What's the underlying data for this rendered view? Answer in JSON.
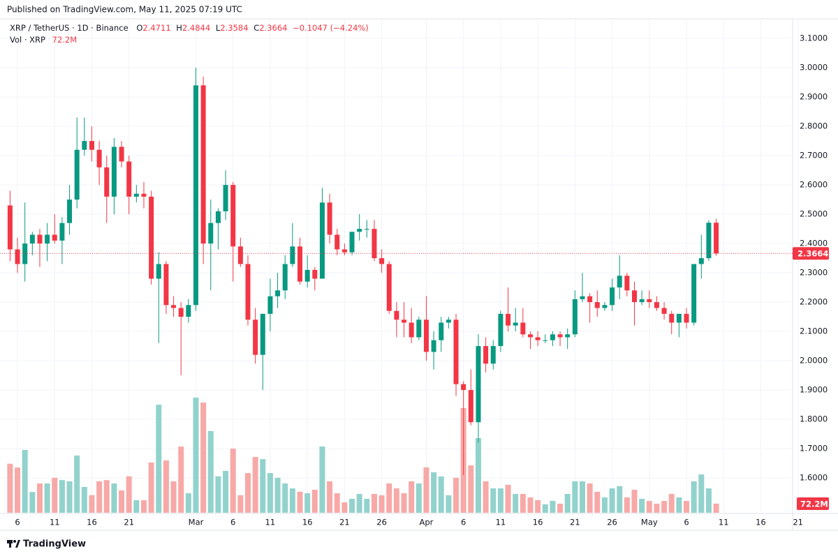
{
  "published": "Published on TradingView.com, May 11, 2025 07:19 UTC",
  "brand": "TradingView",
  "legend": {
    "symbol": "XRP / TetherUS · 1D · Binance",
    "open_label": "O",
    "high_label": "H",
    "low_label": "L",
    "close_label": "C",
    "change": "−0.1047 (−4.24%)",
    "volume_title": "Vol · XRP"
  },
  "chart_data": {
    "type": "candlestick",
    "x": [
      "Feb 5",
      "Feb 6",
      "Feb 7",
      "Feb 8",
      "Feb 9",
      "Feb 10",
      "Feb 11",
      "Feb 12",
      "Feb 13",
      "Feb 14",
      "Feb 15",
      "Feb 16",
      "Feb 17",
      "Feb 18",
      "Feb 19",
      "Feb 20",
      "Feb 21",
      "Feb 22",
      "Feb 23",
      "Feb 24",
      "Feb 25",
      "Feb 26",
      "Feb 27",
      "Feb 28",
      "Mar 1",
      "Mar 2",
      "Mar 3",
      "Mar 4",
      "Mar 5",
      "Mar 6",
      "Mar 7",
      "Mar 8",
      "Mar 9",
      "Mar 10",
      "Mar 11",
      "Mar 12",
      "Mar 13",
      "Mar 14",
      "Mar 15",
      "Mar 16",
      "Mar 17",
      "Mar 18",
      "Mar 19",
      "Mar 20",
      "Mar 21",
      "Mar 22",
      "Mar 23",
      "Mar 24",
      "Mar 25",
      "Mar 26",
      "Mar 27",
      "Mar 28",
      "Mar 29",
      "Mar 30",
      "Mar 31",
      "Apr 1",
      "Apr 2",
      "Apr 3",
      "Apr 4",
      "Apr 5",
      "Apr 6",
      "Apr 7",
      "Apr 8",
      "Apr 9",
      "Apr 10",
      "Apr 11",
      "Apr 12",
      "Apr 13",
      "Apr 14",
      "Apr 15",
      "Apr 16",
      "Apr 17",
      "Apr 18",
      "Apr 19",
      "Apr 20",
      "Apr 21",
      "Apr 22",
      "Apr 23",
      "Apr 24",
      "Apr 25",
      "Apr 26",
      "Apr 27",
      "Apr 28",
      "Apr 29",
      "Apr 30",
      "May 1",
      "May 2",
      "May 3",
      "May 4",
      "May 5",
      "May 6",
      "May 7",
      "May 8",
      "May 9",
      "May 10",
      "May 11"
    ],
    "open": [
      2.53,
      2.38,
      2.33,
      2.4,
      2.43,
      2.4,
      2.43,
      2.41,
      2.47,
      2.55,
      2.72,
      2.75,
      2.72,
      2.66,
      2.56,
      2.73,
      2.68,
      2.56,
      2.57,
      2.56,
      2.28,
      2.33,
      2.19,
      2.18,
      2.15,
      2.19,
      2.94,
      2.4,
      2.47,
      2.51,
      2.6,
      2.39,
      2.33,
      2.14,
      2.02,
      2.16,
      2.22,
      2.24,
      2.33,
      2.39,
      2.27,
      2.31,
      2.28,
      2.54,
      2.43,
      2.38,
      2.37,
      2.44,
      2.45,
      2.45,
      2.35,
      2.33,
      2.17,
      2.14,
      2.13,
      2.08,
      2.14,
      2.03,
      2.07,
      2.13,
      2.14,
      1.92,
      1.9,
      1.79,
      2.05,
      1.99,
      2.05,
      2.16,
      2.12,
      2.13,
      2.09,
      2.08,
      2.07,
      2.07,
      2.09,
      2.08,
      2.09,
      2.21,
      2.22,
      2.2,
      2.18,
      2.19,
      2.25,
      2.29,
      2.24,
      2.2,
      2.21,
      2.2,
      2.18,
      2.16,
      2.13,
      2.16,
      2.13,
      2.33,
      2.35,
      2.4711
    ],
    "high": [
      2.58,
      2.42,
      2.54,
      2.44,
      2.45,
      2.47,
      2.5,
      2.49,
      2.6,
      2.83,
      2.83,
      2.8,
      2.75,
      2.7,
      2.76,
      2.75,
      2.7,
      2.6,
      2.61,
      2.58,
      2.37,
      2.34,
      2.22,
      2.2,
      2.21,
      3.0,
      2.97,
      2.55,
      2.52,
      2.65,
      2.61,
      2.42,
      2.36,
      2.18,
      2.16,
      2.28,
      2.3,
      2.36,
      2.47,
      2.42,
      2.36,
      2.32,
      2.59,
      2.57,
      2.45,
      2.4,
      2.44,
      2.5,
      2.48,
      2.48,
      2.38,
      2.34,
      2.2,
      2.2,
      2.18,
      2.15,
      2.22,
      2.1,
      2.15,
      2.15,
      2.16,
      1.93,
      1.97,
      2.09,
      2.08,
      2.07,
      2.17,
      2.25,
      2.18,
      2.18,
      2.1,
      2.1,
      2.09,
      2.1,
      2.1,
      2.11,
      2.24,
      2.3,
      2.23,
      2.24,
      2.2,
      2.28,
      2.36,
      2.3,
      2.27,
      2.24,
      2.24,
      2.22,
      2.2,
      2.17,
      2.16,
      2.18,
      2.33,
      2.43,
      2.48,
      2.4844
    ],
    "low": [
      2.34,
      2.3,
      2.27,
      2.36,
      2.32,
      2.34,
      2.4,
      2.33,
      2.43,
      2.52,
      2.7,
      2.68,
      2.6,
      2.47,
      2.5,
      2.66,
      2.5,
      2.54,
      2.52,
      2.26,
      2.06,
      2.16,
      2.15,
      1.95,
      2.13,
      2.17,
      2.33,
      2.24,
      2.38,
      2.48,
      2.27,
      2.32,
      2.12,
      1.99,
      1.9,
      2.1,
      2.18,
      2.21,
      2.32,
      2.26,
      2.25,
      2.24,
      2.28,
      2.4,
      2.36,
      2.36,
      2.36,
      2.41,
      2.42,
      2.34,
      2.3,
      2.16,
      2.08,
      2.08,
      2.06,
      2.07,
      2.0,
      1.97,
      2.03,
      2.11,
      1.88,
      1.61,
      1.78,
      1.72,
      1.96,
      1.97,
      2.03,
      2.1,
      2.1,
      2.08,
      2.04,
      2.05,
      2.06,
      2.05,
      2.05,
      2.04,
      2.08,
      2.2,
      2.13,
      2.15,
      2.17,
      2.17,
      2.21,
      2.22,
      2.12,
      2.19,
      2.18,
      2.17,
      2.14,
      2.09,
      2.08,
      2.11,
      2.12,
      2.28,
      2.34,
      2.3584
    ],
    "close": [
      2.38,
      2.33,
      2.4,
      2.43,
      2.4,
      2.43,
      2.41,
      2.47,
      2.55,
      2.72,
      2.75,
      2.72,
      2.66,
      2.56,
      2.73,
      2.68,
      2.56,
      2.57,
      2.56,
      2.28,
      2.33,
      2.19,
      2.18,
      2.15,
      2.19,
      2.94,
      2.4,
      2.47,
      2.51,
      2.6,
      2.39,
      2.33,
      2.14,
      2.02,
      2.16,
      2.22,
      2.24,
      2.33,
      2.39,
      2.27,
      2.31,
      2.28,
      2.54,
      2.43,
      2.38,
      2.37,
      2.44,
      2.45,
      2.45,
      2.35,
      2.33,
      2.17,
      2.14,
      2.13,
      2.08,
      2.14,
      2.03,
      2.07,
      2.13,
      2.14,
      1.92,
      1.9,
      1.79,
      2.05,
      1.99,
      2.05,
      2.16,
      2.12,
      2.13,
      2.09,
      2.08,
      2.07,
      2.07,
      2.09,
      2.08,
      2.09,
      2.21,
      2.22,
      2.2,
      2.18,
      2.19,
      2.25,
      2.29,
      2.24,
      2.2,
      2.21,
      2.2,
      2.18,
      2.16,
      2.13,
      2.16,
      2.13,
      2.33,
      2.35,
      2.4711,
      2.3664
    ],
    "volume": [
      390,
      360,
      500,
      165,
      233,
      233,
      278,
      260,
      250,
      455,
      205,
      140,
      250,
      260,
      233,
      178,
      290,
      100,
      100,
      400,
      860,
      416,
      250,
      527,
      155,
      916,
      877,
      650,
      290,
      333,
      510,
      139,
      316,
      444,
      427,
      316,
      278,
      233,
      194,
      167,
      155,
      183,
      527,
      250,
      155,
      83,
      111,
      150,
      111,
      150,
      139,
      233,
      194,
      155,
      250,
      233,
      361,
      322,
      289,
      139,
      278,
      833,
      377,
      594,
      250,
      194,
      194,
      222,
      150,
      150,
      122,
      100,
      67,
      94,
      72,
      150,
      250,
      250,
      233,
      167,
      122,
      194,
      211,
      122,
      183,
      111,
      94,
      72,
      94,
      150,
      122,
      94,
      250,
      305,
      194,
      72.2
    ],
    "last_volume_label": "72.2M",
    "up_color": "#089981",
    "down_color": "#f23645",
    "up_volume_color": "#92d2cc",
    "down_volume_color": "#f7a9a7",
    "ylim": [
      1.481,
      3.167
    ],
    "yticks": [
      {
        "value": 1.6,
        "label": "1.6000"
      },
      {
        "value": 1.7,
        "label": "1.7000"
      },
      {
        "value": 1.8,
        "label": "1.8000"
      },
      {
        "value": 1.9,
        "label": "1.9000"
      },
      {
        "value": 2.0,
        "label": "2.0000"
      },
      {
        "value": 2.1,
        "label": "2.1000"
      },
      {
        "value": 2.2,
        "label": "2.2000"
      },
      {
        "value": 2.3,
        "label": "2.3000"
      },
      {
        "value": 2.4,
        "label": "2.4000"
      },
      {
        "value": 2.5,
        "label": "2.5000"
      },
      {
        "value": 2.6,
        "label": "2.6000"
      },
      {
        "value": 2.7,
        "label": "2.7000"
      },
      {
        "value": 2.8,
        "label": "2.8000"
      },
      {
        "value": 2.9,
        "label": "2.9000"
      },
      {
        "value": 3.0,
        "label": "3.0000"
      },
      {
        "value": 3.1,
        "label": "3.1000"
      }
    ],
    "xticks": [
      {
        "value": "Feb 6",
        "label": "6"
      },
      {
        "value": "Feb 11",
        "label": "11"
      },
      {
        "value": "Feb 16",
        "label": "16"
      },
      {
        "value": "Feb 21",
        "label": "21"
      },
      {
        "value": "Mar 1",
        "label": "Mar"
      },
      {
        "value": "Mar 6",
        "label": "6"
      },
      {
        "value": "Mar 11",
        "label": "11"
      },
      {
        "value": "Mar 16",
        "label": "16"
      },
      {
        "value": "Mar 21",
        "label": "21"
      },
      {
        "value": "Mar 26",
        "label": "26"
      },
      {
        "value": "Apr 1",
        "label": "Apr"
      },
      {
        "value": "Apr 6",
        "label": "6"
      },
      {
        "value": "Apr 11",
        "label": "11"
      },
      {
        "value": "Apr 16",
        "label": "16"
      },
      {
        "value": "Apr 21",
        "label": "21"
      },
      {
        "value": "Apr 26",
        "label": "26"
      },
      {
        "value": "May 1",
        "label": "May"
      },
      {
        "value": "May 6",
        "label": "6"
      },
      {
        "value": "May 11",
        "label": "11"
      },
      {
        "value": "May 16",
        "label": "16"
      },
      {
        "value": "May 21",
        "label": "21"
      }
    ],
    "grid": true
  }
}
